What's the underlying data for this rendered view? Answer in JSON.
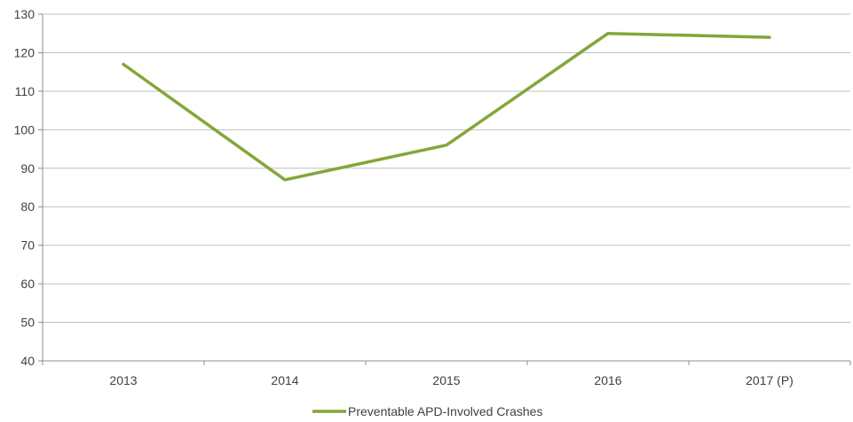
{
  "chart_data": {
    "type": "line",
    "title": "",
    "xlabel": "",
    "ylabel": "",
    "categories": [
      "2013",
      "2014",
      "2015",
      "2016",
      "2017 (P)"
    ],
    "series": [
      {
        "name": "Preventable APD-Involved Crashes",
        "values": [
          117,
          87,
          96,
          125,
          124
        ],
        "color": "#84A63A"
      }
    ],
    "ylim": [
      40,
      130
    ],
    "yticks": [
      "40",
      "50",
      "60",
      "70",
      "80",
      "90",
      "100",
      "110",
      "120",
      "130"
    ],
    "grid": true,
    "legend": "bottom-center"
  }
}
